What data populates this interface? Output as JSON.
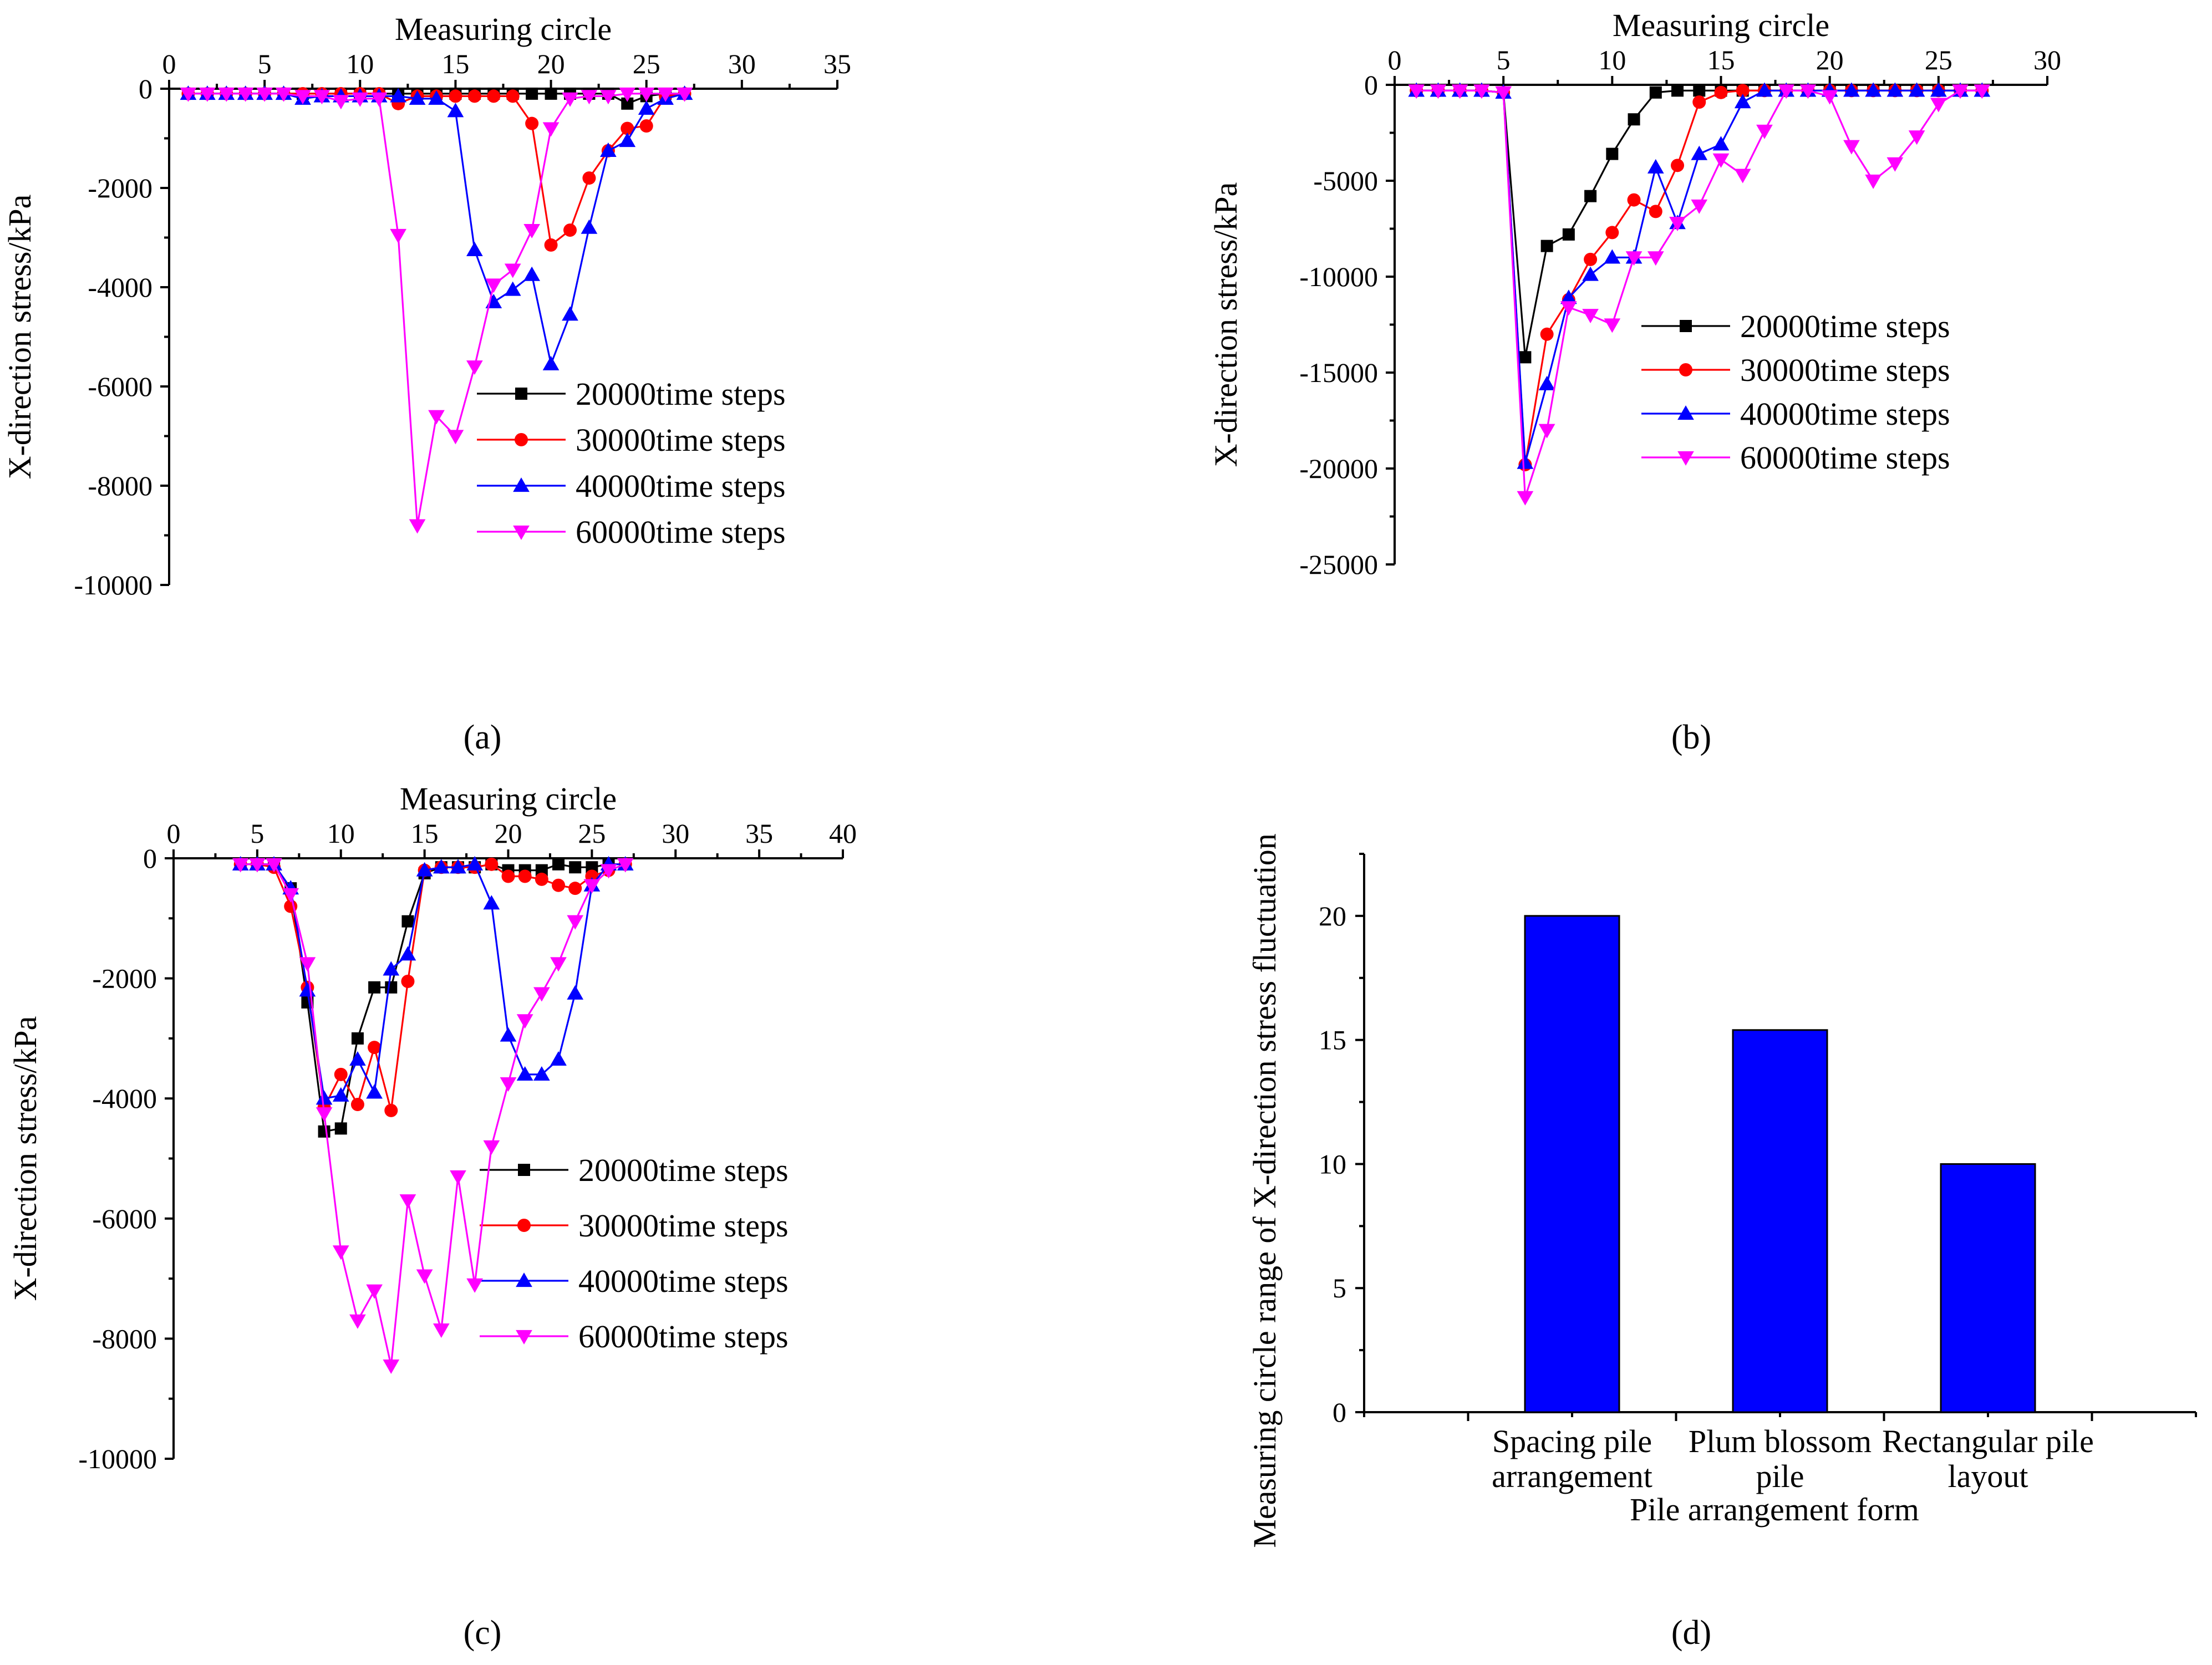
{
  "figure": {
    "panel_labels": [
      "(a)",
      "(b)",
      "(c)",
      "(d)"
    ]
  },
  "chart_data": [
    {
      "panel": "a",
      "type": "line",
      "xlabel": "Measuring circle",
      "ylabel": "X-direction stress/kPa",
      "xlim": [
        0,
        35
      ],
      "ylim": [
        -10000,
        0
      ],
      "xticks": [
        0,
        5,
        10,
        15,
        20,
        25,
        30,
        35
      ],
      "yticks": [
        0,
        -2000,
        -4000,
        -6000,
        -8000,
        -10000
      ],
      "legend": "bottom-right",
      "series": [
        {
          "name": "20000time steps",
          "color": "#000000",
          "marker": "square",
          "x": [
            1,
            2,
            3,
            4,
            5,
            6,
            7,
            8,
            9,
            10,
            11,
            12,
            13,
            14,
            15,
            16,
            17,
            18,
            19,
            20,
            21,
            22,
            23,
            24,
            25,
            26,
            27
          ],
          "y": [
            -100,
            -100,
            -100,
            -100,
            -100,
            -100,
            -100,
            -100,
            -100,
            -100,
            -100,
            -100,
            -100,
            -100,
            -100,
            -100,
            -100,
            -100,
            -100,
            -100,
            -100,
            -100,
            -100,
            -300,
            -150,
            -100,
            -100
          ]
        },
        {
          "name": "30000time steps",
          "color": "#ff0000",
          "marker": "circle",
          "x": [
            1,
            2,
            3,
            4,
            5,
            6,
            7,
            8,
            9,
            10,
            11,
            12,
            13,
            14,
            15,
            16,
            17,
            18,
            19,
            20,
            21,
            22,
            23,
            24,
            25,
            26,
            27
          ],
          "y": [
            -100,
            -100,
            -100,
            -100,
            -100,
            -100,
            -100,
            -100,
            -100,
            -100,
            -100,
            -300,
            -150,
            -150,
            -150,
            -150,
            -150,
            -150,
            -700,
            -3150,
            -2850,
            -1800,
            -1250,
            -800,
            -750,
            -150,
            -100
          ]
        },
        {
          "name": "40000time steps",
          "color": "#0000ff",
          "marker": "triangle-up",
          "x": [
            1,
            2,
            3,
            4,
            5,
            6,
            7,
            8,
            9,
            10,
            11,
            12,
            13,
            14,
            15,
            16,
            17,
            18,
            19,
            20,
            21,
            22,
            23,
            24,
            25,
            26,
            27
          ],
          "y": [
            -100,
            -100,
            -100,
            -100,
            -100,
            -100,
            -200,
            -150,
            -150,
            -150,
            -150,
            -150,
            -200,
            -200,
            -450,
            -3250,
            -4300,
            -4050,
            -3750,
            -5550,
            -4550,
            -2800,
            -1250,
            -1050,
            -400,
            -200,
            -100
          ]
        },
        {
          "name": "60000time steps",
          "color": "#ff00ff",
          "marker": "triangle-down",
          "x": [
            1,
            2,
            3,
            4,
            5,
            6,
            7,
            8,
            9,
            10,
            11,
            12,
            13,
            14,
            15,
            16,
            17,
            18,
            19,
            20,
            21,
            22,
            23,
            24,
            25,
            26,
            27
          ],
          "y": [
            -100,
            -100,
            -100,
            -100,
            -100,
            -100,
            -150,
            -150,
            -250,
            -200,
            -200,
            -2950,
            -8800,
            -6600,
            -7000,
            -5600,
            -3950,
            -3650,
            -2850,
            -800,
            -200,
            -150,
            -150,
            -100,
            -100,
            -100,
            -100
          ]
        }
      ]
    },
    {
      "panel": "b",
      "type": "line",
      "xlabel": "Measuring circle",
      "ylabel": "X-direction stress/kPa",
      "xlim": [
        0,
        30
      ],
      "ylim": [
        -25000,
        0
      ],
      "xticks": [
        0,
        5,
        10,
        15,
        20,
        25,
        30
      ],
      "yticks": [
        0,
        -5000,
        -10000,
        -15000,
        -20000,
        -25000
      ],
      "legend": "center-right",
      "series": [
        {
          "name": "20000time steps",
          "color": "#000000",
          "marker": "square",
          "x": [
            1,
            2,
            3,
            4,
            5,
            6,
            7,
            8,
            9,
            10,
            11,
            12,
            13,
            14,
            15,
            16,
            17,
            18,
            19,
            20,
            21,
            22,
            23,
            24,
            25,
            26,
            27
          ],
          "y": [
            -300,
            -300,
            -300,
            -300,
            -400,
            -14200,
            -8400,
            -7800,
            -5800,
            -3600,
            -1800,
            -400,
            -300,
            -300,
            -300,
            -300,
            -300,
            -300,
            -300,
            -300,
            -300,
            -300,
            -300,
            -300,
            -300,
            -300,
            -300
          ]
        },
        {
          "name": "30000time steps",
          "color": "#ff0000",
          "marker": "circle",
          "x": [
            1,
            2,
            3,
            4,
            5,
            6,
            7,
            8,
            9,
            10,
            11,
            12,
            13,
            14,
            15,
            16,
            17,
            18,
            19,
            20,
            21,
            22,
            23,
            24,
            25,
            26,
            27
          ],
          "y": [
            -300,
            -300,
            -300,
            -300,
            -400,
            -19800,
            -13000,
            -11200,
            -9100,
            -7700,
            -6000,
            -6600,
            -4200,
            -900,
            -400,
            -300,
            -300,
            -300,
            -300,
            -300,
            -300,
            -300,
            -300,
            -300,
            -300,
            -300,
            -300
          ]
        },
        {
          "name": "40000time steps",
          "color": "#0000ff",
          "marker": "triangle-up",
          "x": [
            1,
            2,
            3,
            4,
            5,
            6,
            7,
            8,
            9,
            10,
            11,
            12,
            13,
            14,
            15,
            16,
            17,
            18,
            19,
            20,
            21,
            22,
            23,
            24,
            25,
            26,
            27
          ],
          "y": [
            -300,
            -300,
            -300,
            -300,
            -400,
            -19700,
            -15600,
            -11100,
            -9900,
            -9000,
            -9000,
            -4300,
            -7200,
            -3600,
            -3100,
            -900,
            -300,
            -300,
            -300,
            -300,
            -300,
            -300,
            -300,
            -300,
            -300,
            -300,
            -300
          ]
        },
        {
          "name": "60000time steps",
          "color": "#ff00ff",
          "marker": "triangle-down",
          "x": [
            1,
            2,
            3,
            4,
            5,
            6,
            7,
            8,
            9,
            10,
            11,
            12,
            13,
            14,
            15,
            16,
            17,
            18,
            19,
            20,
            21,
            22,
            23,
            24,
            25,
            26,
            27
          ],
          "y": [
            -300,
            -300,
            -300,
            -300,
            -400,
            -21500,
            -18000,
            -11600,
            -12000,
            -12500,
            -9000,
            -9000,
            -7200,
            -6300,
            -3900,
            -4700,
            -2400,
            -300,
            -300,
            -600,
            -3200,
            -5000,
            -4100,
            -2700,
            -1000,
            -300,
            -300
          ]
        }
      ]
    },
    {
      "panel": "c",
      "type": "line",
      "xlabel": "Measuring circle",
      "ylabel": "X-direction stress/kPa",
      "xlim": [
        0,
        40
      ],
      "ylim": [
        -10000,
        0
      ],
      "xticks": [
        0,
        5,
        10,
        15,
        20,
        25,
        30,
        35,
        40
      ],
      "yticks": [
        0,
        -2000,
        -4000,
        -6000,
        -8000,
        -10000
      ],
      "legend": "bottom-right",
      "series": [
        {
          "name": "20000time steps",
          "color": "#000000",
          "marker": "square",
          "x": [
            4,
            5,
            6,
            7,
            8,
            9,
            10,
            11,
            12,
            13,
            14,
            15,
            16,
            17,
            18,
            19,
            20,
            21,
            22,
            23,
            24,
            25,
            26,
            27
          ],
          "y": [
            -100,
            -100,
            -100,
            -500,
            -2400,
            -4550,
            -4500,
            -3000,
            -2150,
            -2150,
            -1050,
            -250,
            -150,
            -150,
            -150,
            -100,
            -200,
            -200,
            -200,
            -100,
            -150,
            -150,
            -100,
            -100
          ]
        },
        {
          "name": "30000time steps",
          "color": "#ff0000",
          "marker": "circle",
          "x": [
            4,
            5,
            6,
            7,
            8,
            9,
            10,
            11,
            12,
            13,
            14,
            15,
            16,
            17,
            18,
            19,
            20,
            21,
            22,
            23,
            24,
            25,
            26,
            27
          ],
          "y": [
            -100,
            -100,
            -150,
            -800,
            -2150,
            -4150,
            -3600,
            -4100,
            -3150,
            -4200,
            -2050,
            -200,
            -150,
            -150,
            -150,
            -100,
            -300,
            -300,
            -350,
            -450,
            -500,
            -300,
            -200,
            -100
          ]
        },
        {
          "name": "40000time steps",
          "color": "#0000ff",
          "marker": "triangle-up",
          "x": [
            4,
            5,
            6,
            7,
            8,
            9,
            10,
            11,
            12,
            13,
            14,
            15,
            16,
            17,
            18,
            19,
            20,
            21,
            22,
            23,
            24,
            25,
            26,
            27
          ],
          "y": [
            -100,
            -100,
            -100,
            -500,
            -2200,
            -4000,
            -3950,
            -3350,
            -3900,
            -1850,
            -1600,
            -200,
            -150,
            -150,
            -100,
            -750,
            -2950,
            -3600,
            -3600,
            -3350,
            -2250,
            -450,
            -100,
            -100
          ]
        },
        {
          "name": "60000time steps",
          "color": "#ff00ff",
          "marker": "triangle-down",
          "x": [
            4,
            5,
            6,
            7,
            8,
            9,
            10,
            11,
            12,
            13,
            14,
            15,
            16,
            17,
            18,
            19,
            20,
            21,
            22,
            23,
            24,
            25,
            26,
            27
          ],
          "y": [
            -100,
            -100,
            -100,
            -600,
            -1750,
            -4250,
            -6550,
            -7700,
            -7200,
            -8450,
            -5700,
            -6950,
            -7850,
            -5300,
            -7100,
            -4800,
            -3750,
            -2700,
            -2250,
            -1750,
            -1050,
            -450,
            -200,
            -100
          ]
        }
      ]
    },
    {
      "panel": "d",
      "type": "bar",
      "xlabel": "Pile arrangement form",
      "ylabel": "Measuring circle range of X-direction stress fluctuation",
      "ylim": [
        0,
        22.5
      ],
      "yticks": [
        0,
        5,
        10,
        15,
        20
      ],
      "categories": [
        "Spacing pile arrangement",
        "Plum blossom pile",
        "Rectangular pile layout"
      ],
      "category_lines": [
        [
          "Spacing pile",
          "arrangement"
        ],
        [
          "Plum blossom",
          "pile"
        ],
        [
          "Rectangular pile",
          "layout"
        ]
      ],
      "values": [
        20,
        15.4,
        10
      ],
      "bar_color": "#0000ff"
    }
  ]
}
